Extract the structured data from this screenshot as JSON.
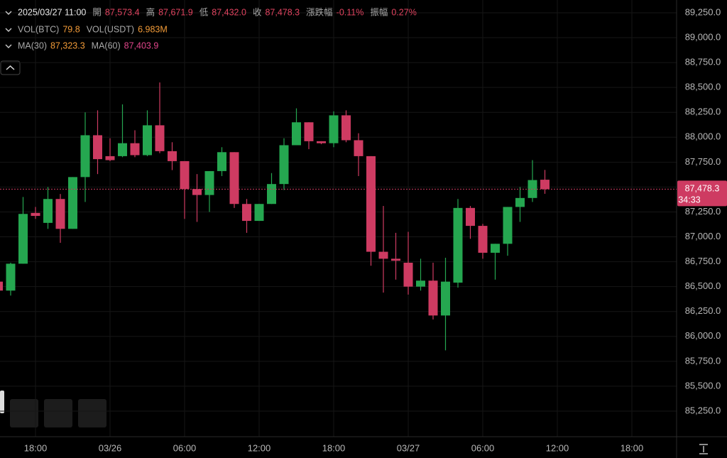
{
  "chart_data": {
    "type": "candlestick",
    "info": {
      "time": "2025/03/27 11:00",
      "rows": [
        [
          {
            "label": "開",
            "value": "87,573.4"
          },
          {
            "label": "高",
            "value": "87,671.9"
          },
          {
            "label": "低",
            "value": "87,432.0"
          },
          {
            "label": "收",
            "value": "87,478.3"
          },
          {
            "label": "漲跌幅",
            "value": "-0.11%"
          },
          {
            "label": "振幅",
            "value": "0.27%"
          }
        ],
        [
          {
            "label": "VOL(BTC)",
            "value": "79.8"
          },
          {
            "label": "VOL(USDT)",
            "value": "6.983M"
          }
        ],
        [
          {
            "label": "MA(30)",
            "value": "87,323.3"
          },
          {
            "label": "MA(60)",
            "value": "87,403.9"
          }
        ]
      ]
    },
    "categories": [
      null,
      null,
      null,
      "18:00",
      null,
      null,
      null,
      null,
      null,
      "03/26",
      null,
      null,
      null,
      null,
      null,
      "06:00",
      null,
      null,
      null,
      null,
      null,
      "12:00",
      null,
      null,
      null,
      null,
      null,
      "18:00",
      null,
      null,
      null,
      null,
      null,
      "03/27",
      null,
      null,
      null,
      null,
      null,
      "06:00",
      null,
      null,
      null,
      null,
      null,
      "12:00",
      null,
      null,
      null,
      null,
      null,
      "18:00"
    ],
    "open": [
      86550,
      86460,
      86730,
      87240,
      87140,
      87380,
      87080,
      87600,
      88020,
      87810,
      87810,
      87940,
      87820,
      88120,
      87860,
      87760,
      87480,
      87420,
      87660,
      87850,
      87330,
      87160,
      87330,
      87530,
      87920,
      88150,
      87960,
      87940,
      88220,
      87970,
      87810,
      86850,
      86780,
      86740,
      86500,
      86560,
      86210,
      86540,
      87290,
      87110,
      86840,
      86930,
      87300,
      87390,
      87573.4,
      null,
      null,
      null,
      null,
      null,
      null,
      null
    ],
    "high": [
      86600,
      86740,
      87400,
      87300,
      87500,
      87430,
      87600,
      88250,
      88270,
      87990,
      88330,
      88070,
      88270,
      88550,
      87950,
      87760,
      87630,
      87660,
      87900,
      87850,
      87380,
      87330,
      87640,
      87990,
      88290,
      88150,
      87960,
      88260,
      88270,
      88040,
      87810,
      87310,
      87040,
      87050,
      86780,
      86740,
      86790,
      87380,
      87310,
      87130,
      86930,
      87300,
      87500,
      87770,
      87671.9,
      null,
      null,
      null,
      null,
      null,
      null,
      null
    ],
    "low": [
      86440,
      86410,
      86730,
      87180,
      87080,
      86940,
      87080,
      87350,
      87630,
      87760,
      87800,
      87800,
      87810,
      87840,
      87670,
      87180,
      87150,
      87250,
      87610,
      87290,
      87040,
      87160,
      87330,
      87470,
      87920,
      87880,
      87930,
      87900,
      87950,
      87610,
      86710,
      86440,
      86570,
      86420,
      86460,
      86170,
      85860,
      86490,
      86980,
      86780,
      86570,
      86810,
      87150,
      87350,
      87432.0,
      null,
      null,
      null,
      null,
      null,
      null,
      null
    ],
    "close": [
      86460,
      86730,
      87230,
      87210,
      87380,
      87080,
      87600,
      88020,
      87780,
      87770,
      87940,
      87820,
      88120,
      87860,
      87760,
      87480,
      87420,
      87660,
      87850,
      87330,
      87160,
      87330,
      87530,
      87920,
      88150,
      87960,
      87940,
      88220,
      87970,
      87810,
      86850,
      86780,
      86760,
      86500,
      86560,
      86210,
      86550,
      87290,
      87110,
      86840,
      86930,
      87300,
      87390,
      87570,
      87478.3,
      null,
      null,
      null,
      null,
      null,
      null,
      null
    ],
    "up_color": "#25a750",
    "down_color": "#ce3b62",
    "ylim": [
      84993,
      89378
    ],
    "yticks": [
      {
        "value": 85250,
        "label": "85,250.0"
      },
      {
        "value": 85500,
        "label": "85,500.0"
      },
      {
        "value": 85750,
        "label": "85,750.0"
      },
      {
        "value": 86000,
        "label": "86,000.0"
      },
      {
        "value": 86250,
        "label": "86,250.0"
      },
      {
        "value": 86500,
        "label": "86,500.0"
      },
      {
        "value": 86750,
        "label": "86,750.0"
      },
      {
        "value": 87000,
        "label": "87,000.0"
      },
      {
        "value": 87250,
        "label": "87,250.0"
      },
      {
        "value": 87500,
        "label": "87,500.0"
      },
      {
        "value": 87750,
        "label": "87,750.0"
      },
      {
        "value": 88000,
        "label": "88,000.0"
      },
      {
        "value": 88250,
        "label": "88,250.0"
      },
      {
        "value": 88500,
        "label": "88,500.0"
      },
      {
        "value": 88750,
        "label": "88,750.0"
      },
      {
        "value": 89000,
        "label": "89,000.0"
      },
      {
        "value": 89250,
        "label": "89,250.0"
      }
    ],
    "last_price": {
      "value": 87478.3,
      "label": "87,478.3"
    },
    "countdown": "34:33",
    "grid": true
  }
}
